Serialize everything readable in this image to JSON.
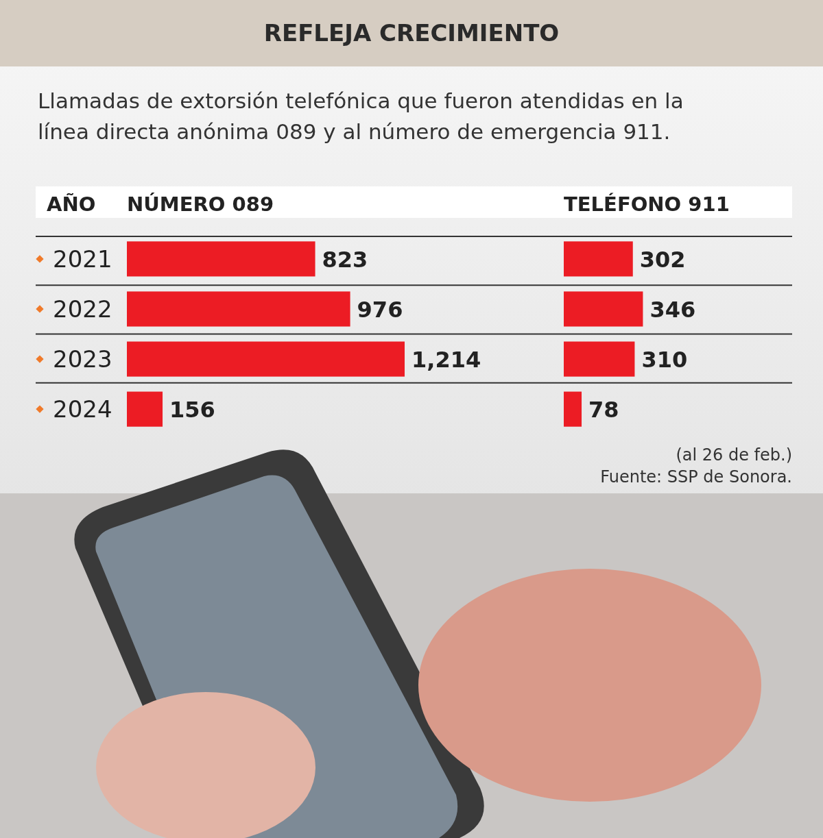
{
  "chart_data": [
    {
      "type": "bar",
      "orientation": "horizontal",
      "title": "REFLEJA CRECIMIENTO",
      "subtitle": "Llamadas de extorsión telefónica que fueron atendidas en la línea directa anónima 089 y al número de emergencia 911.",
      "ylabel": "AÑO",
      "categories": [
        "2021",
        "2022",
        "2023",
        "2024"
      ],
      "series": [
        {
          "name": "NÚMERO 089",
          "color": "#ec1c24",
          "values": [
            823,
            976,
            1214,
            156
          ],
          "value_labels": [
            "823",
            "976",
            "1,214",
            "156"
          ]
        }
      ],
      "legend": "top"
    },
    {
      "type": "bar",
      "orientation": "horizontal",
      "categories": [
        null,
        null,
        null,
        null
      ],
      "tick_labels": false,
      "series": [
        {
          "name": "TELÉFONO 911",
          "color": "#ec1c24",
          "values": [
            302,
            346,
            310,
            78
          ],
          "value_labels": [
            "302",
            "346",
            "310",
            "78"
          ]
        }
      ],
      "legend": "top",
      "annotations": [
        "(al 26 de feb.)",
        "Fuente: SSP de Sonora."
      ]
    }
  ]
}
